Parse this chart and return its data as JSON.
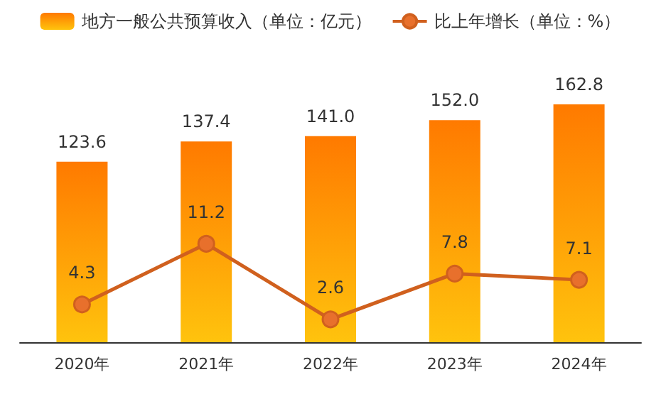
{
  "chart_data": {
    "type": "bar",
    "categories": [
      "2020年",
      "2021年",
      "2022年",
      "2023年",
      "2024年"
    ],
    "series": [
      {
        "name": "地方一般公共预算收入（单位：亿元）",
        "color": "#ff7a00",
        "values": [
          123.6,
          137.4,
          141.0,
          152.0,
          162.8
        ],
        "value_labels": [
          "123.6",
          "137.4",
          "141.0",
          "152.0",
          "162.8"
        ]
      },
      {
        "name": "比上年增长（单位：%）",
        "type": "line",
        "axis": "y2",
        "color": "#d0601e",
        "marker": "circle",
        "values": [
          4.3,
          11.2,
          2.6,
          7.8,
          7.1
        ]
      }
    ],
    "data_labels": true,
    "legend": "top"
  }
}
